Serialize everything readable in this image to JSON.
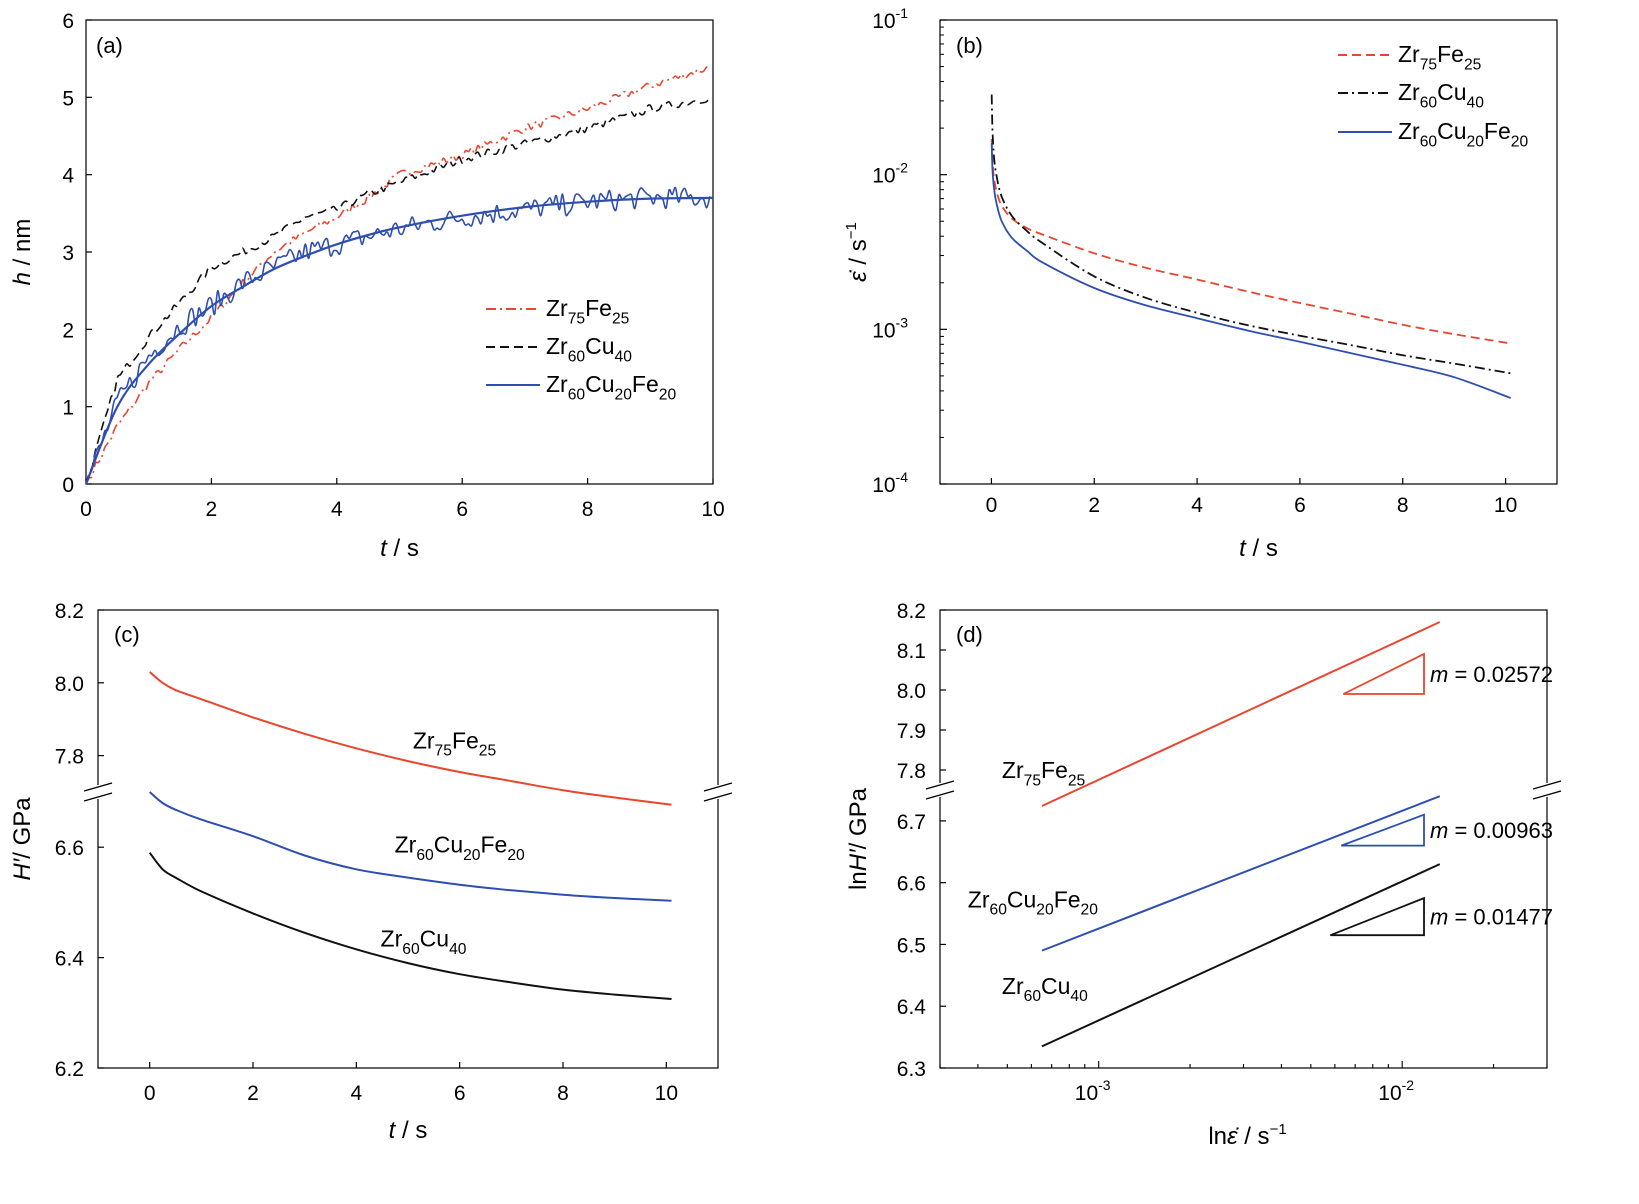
{
  "colors": {
    "zrfe": "#e8462e",
    "zrcu": "#111111",
    "zrcufe": "#2f4fb0",
    "axis": "#000000"
  },
  "legend_names": {
    "zrfe": {
      "base1": "Zr",
      "sub1": "75",
      "base2": "Fe",
      "sub2": "25"
    },
    "zrcu": {
      "base1": "Zr",
      "sub1": "60",
      "base2": "Cu",
      "sub2": "40"
    },
    "zrcufe": {
      "base1": "Zr",
      "sub1": "60",
      "base2": "Cu",
      "sub2": "20",
      "base3": "Fe",
      "sub3": "20"
    }
  },
  "chart_data": [
    {
      "panel": "(a)",
      "type": "line",
      "xlabel_var": "t",
      "xlabel_unit": " / s",
      "ylabel_var": "h",
      "ylabel_unit": " / nm",
      "xlim": [
        0,
        10
      ],
      "ylim": [
        0,
        6
      ],
      "xticks": [
        "0",
        "2",
        "4",
        "6",
        "8",
        "10"
      ],
      "yticks": [
        "0",
        "1",
        "2",
        "3",
        "4",
        "5",
        "6"
      ],
      "legend": "right",
      "series": [
        {
          "key": "zrfe",
          "style": "dashdot",
          "x": [
            0,
            0.5,
            1,
            1.5,
            2,
            2.5,
            3,
            3.5,
            4,
            4.5,
            5,
            6,
            7,
            8,
            9,
            10
          ],
          "y": [
            0,
            0.75,
            1.3,
            1.75,
            2.15,
            2.6,
            3.0,
            3.25,
            3.45,
            3.7,
            4.0,
            4.25,
            4.6,
            4.85,
            5.15,
            5.4
          ]
        },
        {
          "key": "zrcu",
          "style": "dashed",
          "x": [
            0,
            0.5,
            1,
            1.5,
            2,
            2.5,
            3,
            3.5,
            4,
            4.5,
            5,
            6,
            7,
            8,
            9,
            10
          ],
          "y": [
            0,
            1.35,
            1.9,
            2.35,
            2.8,
            3.0,
            3.2,
            3.45,
            3.55,
            3.75,
            3.9,
            4.2,
            4.4,
            4.6,
            4.85,
            5.0
          ]
        },
        {
          "key": "zrcufe",
          "style": "solid-noisy",
          "x": [
            0,
            0.5,
            1,
            1.5,
            2,
            2.5,
            3,
            3.5,
            4,
            4.5,
            5,
            6,
            7,
            8,
            9,
            10
          ],
          "y": [
            0,
            1.05,
            1.65,
            2.05,
            2.3,
            2.6,
            2.8,
            3.0,
            3.1,
            3.2,
            3.3,
            3.45,
            3.55,
            3.65,
            3.7,
            3.7
          ]
        },
        {
          "key": "zrcufe",
          "style": "fit",
          "x": [
            0,
            0.5,
            1,
            1.5,
            2,
            2.5,
            3,
            3.5,
            4,
            4.5,
            5,
            6,
            7,
            8,
            9,
            10
          ],
          "y": [
            0,
            1.0,
            1.55,
            1.95,
            2.3,
            2.55,
            2.78,
            2.95,
            3.1,
            3.22,
            3.32,
            3.47,
            3.58,
            3.65,
            3.69,
            3.7
          ]
        }
      ]
    },
    {
      "panel": "(b)",
      "type": "line",
      "xlabel_var": "t",
      "xlabel_unit": " / s",
      "ylabel_var": "ε̇",
      "ylabel_unit": " / s",
      "ylabel_exp": "−1",
      "yscale": "log",
      "xlim": [
        -1,
        11
      ],
      "ylim": [
        0.0001,
        0.1
      ],
      "xticks": [
        "0",
        "2",
        "4",
        "6",
        "8",
        "10"
      ],
      "yticks": [
        {
          "base": "10",
          "exp": "-4"
        },
        {
          "base": "10",
          "exp": "-3"
        },
        {
          "base": "10",
          "exp": "-2"
        },
        {
          "base": "10",
          "exp": "-1"
        }
      ],
      "legend": "top-right",
      "series": [
        {
          "key": "zrfe",
          "style": "dashed",
          "x": [
            0.005,
            0.02,
            0.05,
            0.1,
            0.2,
            0.4,
            0.7,
            1,
            2,
            3,
            4,
            5,
            6,
            7,
            8,
            9,
            10.1
          ],
          "y": [
            0.017,
            0.0125,
            0.0095,
            0.0078,
            0.0063,
            0.0052,
            0.0045,
            0.0041,
            0.0031,
            0.0025,
            0.0021,
            0.00175,
            0.00148,
            0.00126,
            0.00107,
            0.00093,
            0.00081
          ]
        },
        {
          "key": "zrcu",
          "style": "dashdot",
          "x": [
            0.005,
            0.02,
            0.05,
            0.1,
            0.2,
            0.4,
            0.7,
            1,
            2,
            3,
            4,
            5,
            6,
            7,
            8,
            9,
            10.1
          ],
          "y": [
            0.033,
            0.02,
            0.013,
            0.0098,
            0.0072,
            0.0054,
            0.0043,
            0.0036,
            0.0022,
            0.0016,
            0.00128,
            0.00106,
            0.00091,
            0.00079,
            0.00068,
            0.0006,
            0.00052
          ]
        },
        {
          "key": "zrcufe",
          "style": "solid",
          "x": [
            0.005,
            0.02,
            0.05,
            0.1,
            0.2,
            0.4,
            0.7,
            1,
            2,
            3,
            4,
            5,
            6,
            7,
            8,
            9,
            10.1
          ],
          "y": [
            0.016,
            0.011,
            0.0082,
            0.0065,
            0.005,
            0.0039,
            0.0032,
            0.0027,
            0.00185,
            0.00143,
            0.00118,
            0.00098,
            0.00083,
            0.0007,
            0.00059,
            0.00049,
            0.00036
          ]
        }
      ]
    },
    {
      "panel": "(c)",
      "type": "line",
      "xlabel_var": "t",
      "xlabel_unit": " / s",
      "ylabel_var": "H′",
      "ylabel_unit": "/ GPa",
      "broken_y": true,
      "xlim": [
        -1,
        11
      ],
      "ylim_lower": [
        6.2,
        6.7
      ],
      "ylim_upper": [
        7.7,
        8.2
      ],
      "xticks": [
        "0",
        "2",
        "4",
        "6",
        "8",
        "10"
      ],
      "yticks_lower": [
        "6.2",
        "6.4",
        "6.6"
      ],
      "yticks_upper": [
        "7.8",
        "8.0",
        "8.2"
      ],
      "series": [
        {
          "key": "zrfe",
          "style": "solid",
          "x": [
            0,
            0.25,
            0.5,
            1,
            2,
            3,
            4,
            5,
            6,
            7,
            8,
            9,
            10.1
          ],
          "y": [
            8.03,
            8.0,
            7.98,
            7.955,
            7.905,
            7.86,
            7.82,
            7.785,
            7.755,
            7.73,
            7.705,
            7.685,
            7.665
          ]
        },
        {
          "key": "zrcufe",
          "style": "solid",
          "x": [
            0,
            0.25,
            0.5,
            1,
            2,
            3,
            4,
            5,
            6,
            7,
            8,
            9,
            10.1
          ],
          "y": [
            6.7,
            6.68,
            6.668,
            6.65,
            6.62,
            6.585,
            6.56,
            6.545,
            6.532,
            6.522,
            6.514,
            6.508,
            6.503
          ]
        },
        {
          "key": "zrcu",
          "style": "solid",
          "x": [
            0,
            0.25,
            0.5,
            1,
            2,
            3,
            4,
            5,
            6,
            7,
            8,
            9,
            10.1
          ],
          "y": [
            6.59,
            6.56,
            6.545,
            6.52,
            6.48,
            6.445,
            6.415,
            6.39,
            6.37,
            6.355,
            6.342,
            6.333,
            6.325
          ]
        }
      ],
      "labels": [
        {
          "key": "zrfe",
          "at_x": 5.9,
          "at_y": 7.82,
          "seg": "upper"
        },
        {
          "key": "zrcufe",
          "at_x": 6.0,
          "at_y": 6.59,
          "seg": "lower"
        },
        {
          "key": "zrcu",
          "at_x": 5.3,
          "at_y": 6.42,
          "seg": "lower"
        }
      ]
    },
    {
      "panel": "(d)",
      "type": "line",
      "xlabel_prefix": "ln",
      "xlabel_var": "ε̇",
      "xlabel_unit": " / s",
      "xlabel_exp": "−1",
      "ylabel_prefix": "ln",
      "ylabel_var": "H′",
      "ylabel_unit": "/ GPa",
      "xscale": "log",
      "broken_y": true,
      "xlim": [
        0.0003,
        0.03
      ],
      "ylim_lower": [
        6.3,
        6.75
      ],
      "ylim_upper": [
        7.75,
        8.2
      ],
      "xticks": [
        {
          "base": "10",
          "exp": "-3"
        },
        {
          "base": "10",
          "exp": "-2"
        }
      ],
      "yticks_lower": [
        "6.3",
        "6.4",
        "6.5",
        "6.6",
        "6.7"
      ],
      "yticks_upper": [
        "7.8",
        "7.9",
        "8.0",
        "8.1",
        "8.2"
      ],
      "series": [
        {
          "key": "zrfe",
          "style": "solid",
          "x": [
            0.00065,
            0.0133
          ],
          "y": [
            7.71,
            8.17
          ]
        },
        {
          "key": "zrcufe",
          "style": "solid",
          "x": [
            0.00065,
            0.0133
          ],
          "y": [
            6.49,
            6.74
          ]
        },
        {
          "key": "zrcu",
          "style": "solid",
          "x": [
            0.00065,
            0.0133
          ],
          "y": [
            6.335,
            6.63
          ]
        }
      ],
      "slopes": [
        {
          "key": "zrfe",
          "m_label": "m",
          "m_value": " = 0.02572",
          "x0": 0.0064,
          "x1": 0.0118,
          "y0": 7.99,
          "y1": 8.09,
          "seg": "upper"
        },
        {
          "key": "zrcufe",
          "m_label": "m",
          "m_value": " = 0.00963",
          "x0": 0.0063,
          "x1": 0.0118,
          "y0": 6.66,
          "y1": 6.71,
          "seg": "lower"
        },
        {
          "key": "zrcu",
          "m_label": "m",
          "m_value": " = 0.01477",
          "x0": 0.0058,
          "x1": 0.0118,
          "y0": 6.515,
          "y1": 6.575,
          "seg": "lower"
        }
      ],
      "labels": [
        {
          "key": "zrfe",
          "at_x": 0.00065,
          "at_y": 7.78,
          "seg": "upper"
        },
        {
          "key": "zrcufe",
          "at_x": 0.00063,
          "at_y": 6.56,
          "seg": "lower"
        },
        {
          "key": "zrcu",
          "at_x": 0.00065,
          "at_y": 6.42,
          "seg": "lower"
        }
      ]
    }
  ]
}
